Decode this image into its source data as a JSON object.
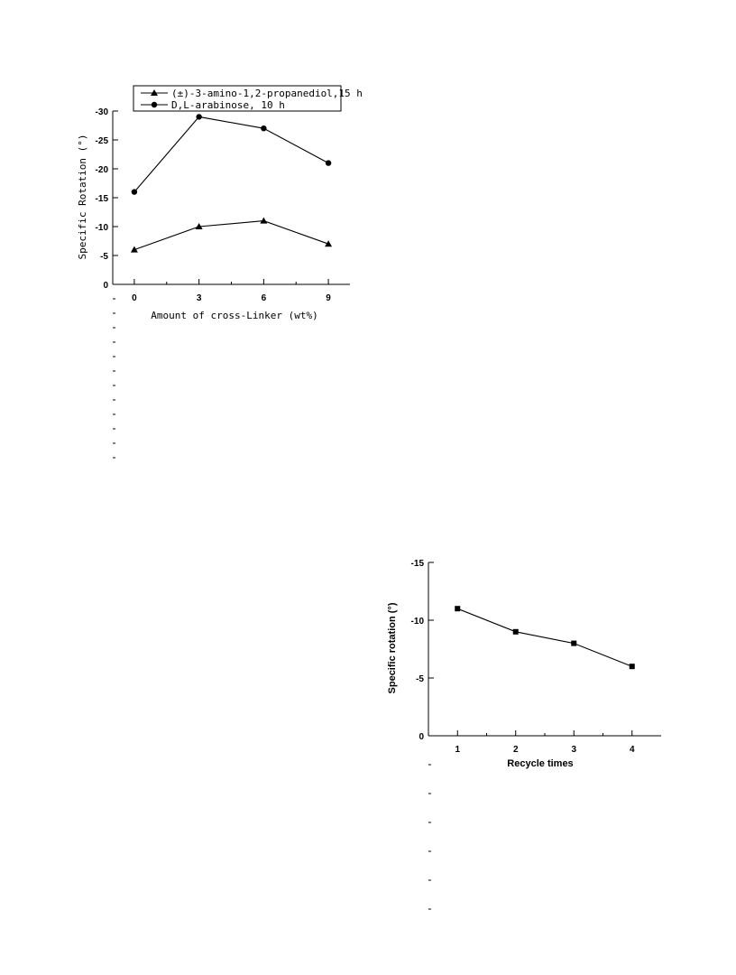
{
  "chart_data": [
    {
      "type": "line",
      "title": "",
      "xlabel": "Amount of cross-Linker (wt%)",
      "ylabel": "Specific Rotation (°)",
      "x": [
        0,
        3,
        6,
        9
      ],
      "x_ticks": [
        "0",
        "3",
        "6",
        "9"
      ],
      "y_ticks": [
        "0",
        "-5",
        "-10",
        "-15",
        "-20",
        "-25",
        "-30"
      ],
      "xlim": [
        -1,
        10
      ],
      "ylim": [
        0,
        -30
      ],
      "grid": false,
      "legend_position": "top",
      "series": [
        {
          "name": "(±)-3-amino-1,2-propanediol,15 h",
          "marker": "triangle",
          "values": [
            -6,
            -10,
            -11,
            -7
          ]
        },
        {
          "name": "D,L-arabinose, 10 h",
          "marker": "circle",
          "values": [
            -16,
            -29,
            -27,
            -21
          ]
        }
      ]
    },
    {
      "type": "line",
      "title": "",
      "xlabel": "Recycle times",
      "ylabel": "Specific rotation (°)",
      "x": [
        1,
        2,
        3,
        4
      ],
      "x_ticks": [
        "1",
        "2",
        "3",
        "4"
      ],
      "y_ticks": [
        "0",
        "-5",
        "-10",
        "-15"
      ],
      "xlim": [
        0.5,
        4.5
      ],
      "ylim": [
        0,
        -15
      ],
      "grid": false,
      "series": [
        {
          "marker": "square",
          "values": [
            -11,
            -9,
            -8,
            -6
          ]
        }
      ]
    }
  ]
}
